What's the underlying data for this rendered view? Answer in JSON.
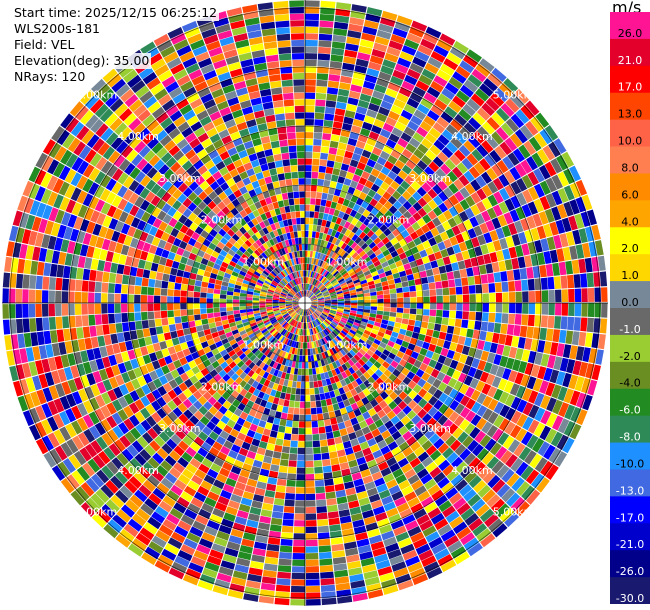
{
  "header": {
    "start_time": "Start time: 2025/12/15 06:25:12",
    "instrument": "WLS200s-181",
    "field": "Field: VEL",
    "elevation": "Elevation(deg): 35.00",
    "nrays": "NRays: 120"
  },
  "colorbar": {
    "unit": "m/s",
    "bins": [
      {
        "label": "26.0",
        "color": "#ff1493"
      },
      {
        "label": "21.0",
        "color": "#e3002b"
      },
      {
        "label": "17.0",
        "color": "#ff0000"
      },
      {
        "label": "13.0",
        "color": "#ff4500"
      },
      {
        "label": "10.0",
        "color": "#ff6347"
      },
      {
        "label": "8.0",
        "color": "#ff7f50"
      },
      {
        "label": "6.0",
        "color": "#ff8c00"
      },
      {
        "label": "4.0",
        "color": "#ffa500"
      },
      {
        "label": "2.0",
        "color": "#ffff00"
      },
      {
        "label": "1.0",
        "color": "#ffd700"
      },
      {
        "label": "0.0",
        "color": "#778899"
      },
      {
        "label": "-1.0",
        "color": "#696969"
      },
      {
        "label": "-2.0",
        "color": "#9acd32"
      },
      {
        "label": "-4.0",
        "color": "#6b8e23"
      },
      {
        "label": "-6.0",
        "color": "#228b22"
      },
      {
        "label": "-8.0",
        "color": "#2e8b57"
      },
      {
        "label": "-10.0",
        "color": "#1e90ff"
      },
      {
        "label": "-13.0",
        "color": "#4169e1"
      },
      {
        "label": "-17.0",
        "color": "#0000ff"
      },
      {
        "label": "-21.0",
        "color": "#0000cd"
      },
      {
        "label": "-26.0",
        "color": "#00008b"
      },
      {
        "label": "-30.0",
        "color": "#191970"
      }
    ]
  },
  "chart_data": {
    "type": "heatmap",
    "title": "",
    "nrays": 120,
    "elevation_deg": 35.0,
    "range_ring_labels": [
      "1.00km",
      "2.00km",
      "3.00km",
      "4.00km",
      "5.00km"
    ],
    "max_range_km": 5.0,
    "value_range": [
      -30.0,
      26.0
    ],
    "unit": "m/s",
    "grid": true
  }
}
